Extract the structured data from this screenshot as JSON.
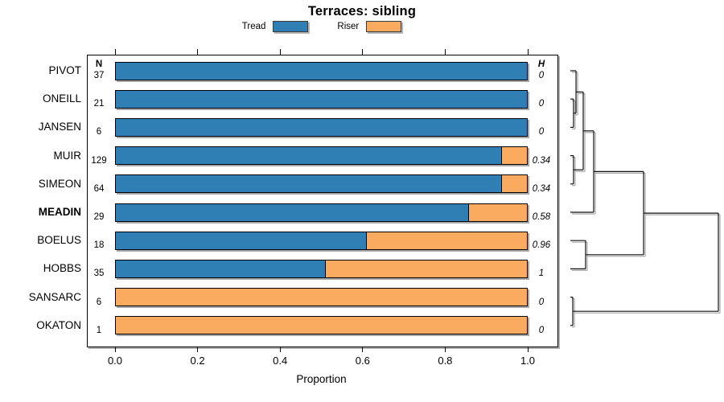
{
  "title": "Terraces: sibling",
  "legend": {
    "items": [
      {
        "label": "Tread",
        "color": "#2F7FB5"
      },
      {
        "label": "Riser",
        "color": "#FBAB60"
      }
    ]
  },
  "columns": {
    "n_header": "N",
    "h_header": "H"
  },
  "x_axis": {
    "label": "Proportion",
    "ticks": [
      "0.0",
      "0.2",
      "0.4",
      "0.6",
      "0.8",
      "1.0"
    ],
    "range": [
      0,
      1
    ]
  },
  "chart_data": {
    "type": "bar",
    "orientation": "horizontal-stacked",
    "title": "Terraces: sibling",
    "xlabel": "Proportion",
    "xlim": [
      0,
      1
    ],
    "categories": [
      "PIVOT",
      "ONEILL",
      "JANSEN",
      "MUIR",
      "SIMEON",
      "MEADIN",
      "BOELUS",
      "HOBBS",
      "SANSARC",
      "OKATON"
    ],
    "emphasized_category": "MEADIN",
    "n_values": [
      37,
      21,
      6,
      129,
      64,
      29,
      18,
      35,
      6,
      1
    ],
    "h_values": [
      "0",
      "0",
      "0",
      "0.34",
      "0.34",
      "0.58",
      "0.96",
      "1",
      "0",
      "0"
    ],
    "series": [
      {
        "name": "Tread",
        "color": "#2F7FB5",
        "values": [
          1,
          1,
          1,
          0.94,
          0.94,
          0.86,
          0.61,
          0.51,
          0,
          0
        ]
      },
      {
        "name": "Riser",
        "color": "#FBAB60",
        "values": [
          0,
          0,
          0,
          0.06,
          0.06,
          0.14,
          0.39,
          0.49,
          1,
          1
        ]
      }
    ],
    "dendrogram": {
      "side": "right",
      "leaves": [
        "PIVOT",
        "ONEILL",
        "JANSEN",
        "MUIR",
        "SIMEON",
        "MEADIN",
        "BOELUS",
        "HOBBS",
        "SANSARC",
        "OKATON"
      ],
      "nodes": [
        {
          "id": "A",
          "children": [
            "ONEILL",
            "JANSEN"
          ],
          "height": 0.016
        },
        {
          "id": "B",
          "children": [
            "PIVOT",
            "A"
          ],
          "height": 0.033
        },
        {
          "id": "D",
          "children": [
            "MUIR",
            "SIMEON"
          ],
          "height": 0.016
        },
        {
          "id": "C",
          "children": [
            "B",
            "D"
          ],
          "height": 0.082
        },
        {
          "id": "E",
          "children": [
            "C",
            "MEADIN"
          ],
          "height": 0.153
        },
        {
          "id": "G",
          "children": [
            "BOELUS",
            "HOBBS"
          ],
          "height": 0.098
        },
        {
          "id": "F",
          "children": [
            "E",
            "G"
          ],
          "height": 0.492
        },
        {
          "id": "S",
          "children": [
            "SANSARC",
            "OKATON"
          ],
          "height": 0.011
        },
        {
          "id": "R",
          "children": [
            "F",
            "S"
          ],
          "height": 1.0
        }
      ]
    }
  }
}
